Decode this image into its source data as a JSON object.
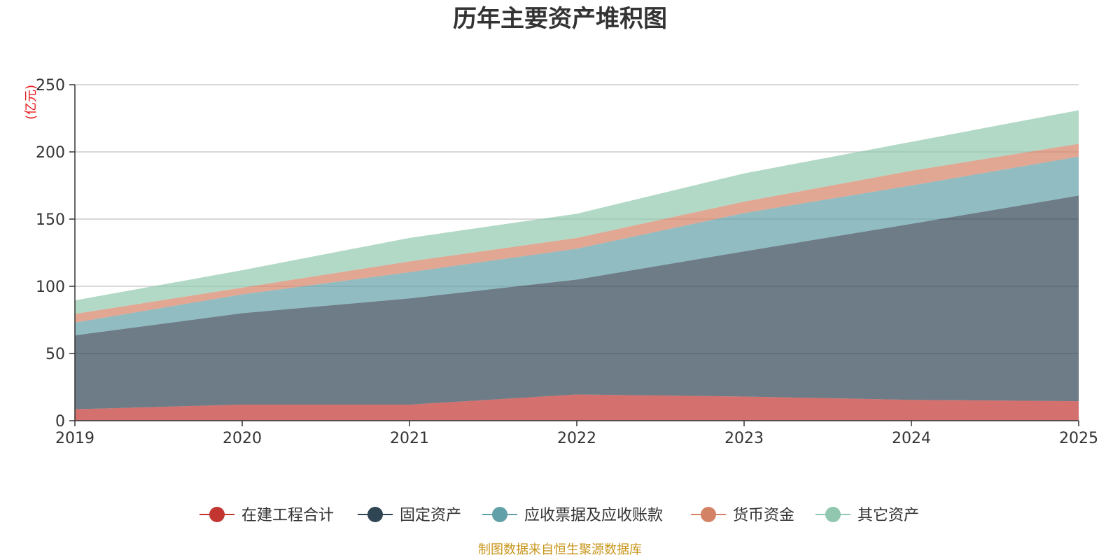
{
  "chart_data": {
    "type": "area",
    "stacked": true,
    "title": "历年主要资产堆积图",
    "unit_label": "(亿元)",
    "xlabel": "",
    "ylabel": "(亿元)",
    "ylim": [
      0,
      250
    ],
    "y_ticks": [
      "0",
      "50",
      "100",
      "150",
      "200",
      "250"
    ],
    "y_tick_values": [
      0,
      50,
      100,
      150,
      200,
      250
    ],
    "x": [
      "2019",
      "2020",
      "2021",
      "2022",
      "2023",
      "2024",
      "2025"
    ],
    "grid": true,
    "legend_position": "bottom",
    "series": [
      {
        "name": "在建工程合计",
        "color": "#c23531",
        "values": [
          8.5,
          12,
          12,
          19.5,
          18,
          15.5,
          14.5
        ]
      },
      {
        "name": "固定资产",
        "color": "#2f4554",
        "values": [
          55,
          68,
          79,
          85.5,
          108,
          131,
          153
        ]
      },
      {
        "name": "应收票据及应收账款",
        "color": "#61a0a8",
        "values": [
          9.5,
          14,
          19.5,
          23,
          28.5,
          28.5,
          29
        ]
      },
      {
        "name": "货币资金",
        "color": "#d48265",
        "values": [
          6.5,
          5,
          8,
          8,
          8.5,
          11,
          9.5
        ]
      },
      {
        "name": "其它资产",
        "color": "#91c7ae",
        "values": [
          10,
          13,
          17.5,
          18,
          21,
          21.5,
          25
        ]
      }
    ],
    "source": "制图数据来自恒生聚源数据库"
  }
}
